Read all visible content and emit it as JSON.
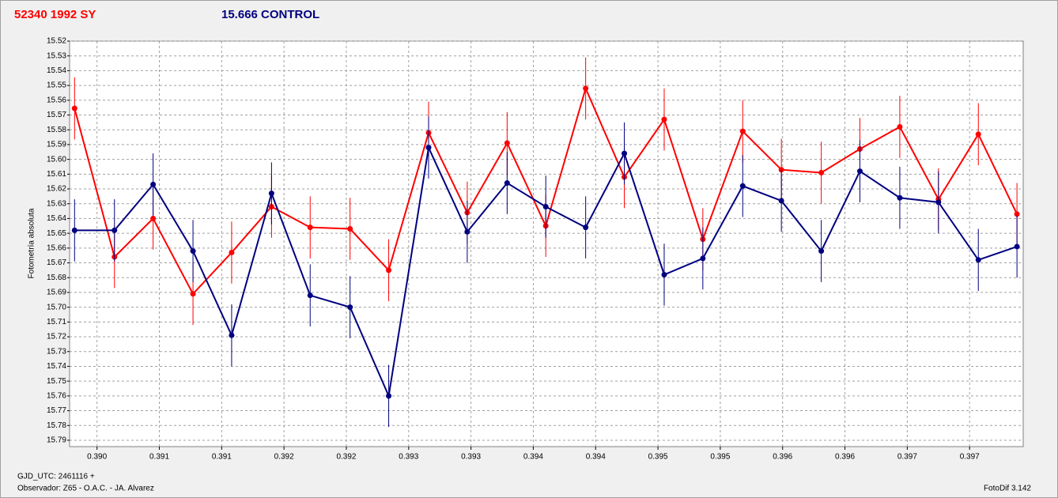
{
  "chart_data": {
    "type": "line",
    "y_label": "Fotometría absoluta",
    "footer_left_1": "GJD_UTC: 2461116 +",
    "footer_left_2": "Observador: Z65 - O.A.C. - JA. Alvarez",
    "footer_right": "FotoDif 3.142",
    "x": [
      0.39002,
      0.39034,
      0.39065,
      0.39097,
      0.39128,
      0.3916,
      0.39191,
      0.39223,
      0.39254,
      0.39286,
      0.39317,
      0.39349,
      0.3938,
      0.39412,
      0.39443,
      0.39475,
      0.39506,
      0.39538,
      0.39569,
      0.39601,
      0.39632,
      0.39664,
      0.39695,
      0.39727,
      0.39758
    ],
    "series": [
      {
        "name": "52340 1992 SY",
        "color": "#ff0000",
        "values": [
          15.5655,
          15.666,
          15.64,
          15.691,
          15.663,
          15.632,
          15.646,
          15.647,
          15.675,
          15.582,
          15.636,
          15.589,
          15.645,
          15.552,
          15.612,
          15.573,
          15.654,
          15.581,
          15.607,
          15.609,
          15.593,
          15.578,
          15.627,
          15.583,
          15.637
        ],
        "errors": [
          0.021,
          0.021,
          0.021,
          0.021,
          0.021,
          0.021,
          0.021,
          0.021,
          0.021,
          0.021,
          0.021,
          0.021,
          0.021,
          0.021,
          0.021,
          0.021,
          0.021,
          0.021,
          0.021,
          0.021,
          0.021,
          0.021,
          0.021,
          0.021,
          0.021
        ]
      },
      {
        "name": "15.666 CONTROL",
        "color": "#000080",
        "values": [
          15.648,
          15.648,
          15.617,
          15.662,
          15.719,
          15.623,
          15.692,
          15.7,
          15.76,
          15.592,
          15.649,
          15.616,
          15.632,
          15.646,
          15.596,
          15.678,
          15.667,
          15.618,
          15.628,
          15.662,
          15.608,
          15.626,
          15.629,
          15.668,
          15.659
        ],
        "errors": [
          0.021,
          0.021,
          0.021,
          0.021,
          0.021,
          0.021,
          0.021,
          0.021,
          0.021,
          0.021,
          0.021,
          0.021,
          0.021,
          0.021,
          0.021,
          0.021,
          0.021,
          0.021,
          0.021,
          0.021,
          0.021,
          0.021,
          0.021,
          0.021,
          0.021
        ]
      }
    ],
    "xlim": [
      0.38998,
      0.39763
    ],
    "xticks": [
      {
        "value": 0.3902,
        "label": "0.390"
      },
      {
        "value": 0.3907,
        "label": "0.391"
      },
      {
        "value": 0.3912,
        "label": "0.391"
      },
      {
        "value": 0.3917,
        "label": "0.392"
      },
      {
        "value": 0.3922,
        "label": "0.392"
      },
      {
        "value": 0.3927,
        "label": "0.393"
      },
      {
        "value": 0.3932,
        "label": "0.393"
      },
      {
        "value": 0.3937,
        "label": "0.394"
      },
      {
        "value": 0.3942,
        "label": "0.394"
      },
      {
        "value": 0.3947,
        "label": "0.395"
      },
      {
        "value": 0.3952,
        "label": "0.395"
      },
      {
        "value": 0.3957,
        "label": "0.396"
      },
      {
        "value": 0.3962,
        "label": "0.396"
      },
      {
        "value": 0.3967,
        "label": "0.397"
      },
      {
        "value": 0.3972,
        "label": "0.397"
      }
    ],
    "ylim": [
      15.52,
      15.7943
    ],
    "y_inverted": true,
    "yticks": [
      15.52,
      15.53,
      15.54,
      15.55,
      15.56,
      15.57,
      15.58,
      15.59,
      {
        "value": 15.6,
        "label": "15.60"
      },
      15.61,
      15.62,
      15.63,
      15.64,
      15.65,
      15.66,
      15.67,
      15.68,
      15.69,
      {
        "value": 15.7,
        "label": "15.70"
      },
      15.71,
      15.72,
      15.73,
      15.74,
      15.75,
      15.76,
      15.77,
      15.78,
      15.79
    ],
    "grid": true
  }
}
